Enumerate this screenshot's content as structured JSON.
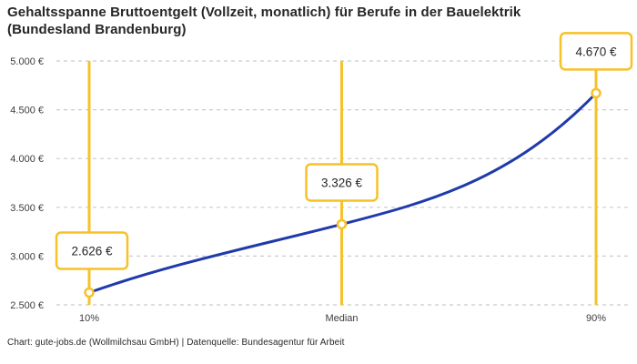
{
  "title": "Gehaltsspanne Bruttoentgelt (Vollzeit, monatlich) für Berufe in der Bauelektrik (Bundesland Brandenburg)",
  "footer": "Chart: gute-jobs.de (Wollmilchsau GmbH) | Datenquelle: Bundesagentur für Arbeit",
  "colors": {
    "accent_yellow": "#F7C128",
    "line_blue": "#1F3AAB",
    "grid_gray": "#CBCBCB",
    "text_dark": "#262626",
    "text_tick": "#3D3D3D",
    "marker_fill": "#FFFFFF"
  },
  "chart_data": {
    "type": "line",
    "title": "Gehaltsspanne Bruttoentgelt (Vollzeit, monatlich) für Berufe in der Bauelektrik (Bundesland Brandenburg)",
    "xlabel": "",
    "ylabel": "",
    "categories": [
      "10%",
      "Median",
      "90%"
    ],
    "values": [
      2626,
      3326,
      4670
    ],
    "value_labels": [
      "2.626 €",
      "3.326 €",
      "4.670 €"
    ],
    "y_tick_values": [
      2500,
      3000,
      3500,
      4000,
      4500,
      5000
    ],
    "y_tick_labels": [
      "2.500 €",
      "3.000 €",
      "3.500 €",
      "4.000 €",
      "4.500 €",
      "5.000 €"
    ],
    "ylim": [
      2500,
      5000
    ],
    "grid": "horizontal-dashed",
    "legend": "none",
    "annotations": "yellow vertical marker line with open circle and boxed value label at each percentile",
    "source_note": "Chart: gute-jobs.de (Wollmilchsau GmbH) | Datenquelle: Bundesagentur für Arbeit"
  }
}
